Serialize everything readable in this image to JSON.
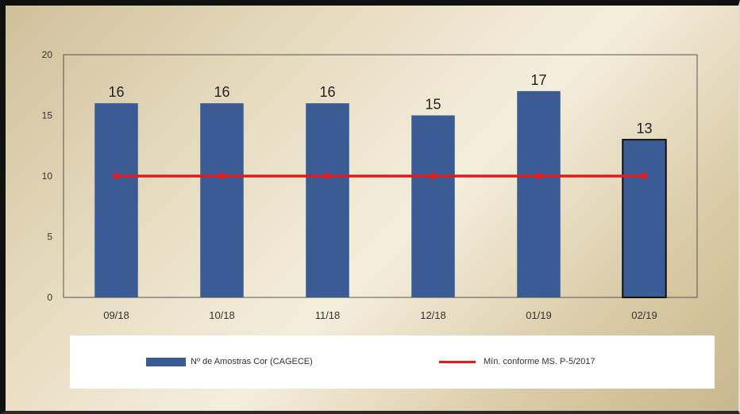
{
  "chart_data": {
    "type": "bar",
    "categories": [
      "09/18",
      "10/18",
      "11/18",
      "12/18",
      "01/19",
      "02/19"
    ],
    "series": [
      {
        "name": "Nº de Amostras Cor (CAGECE)",
        "type": "bar",
        "values": [
          16,
          16,
          16,
          15,
          17,
          13
        ],
        "color": "#3b5b94"
      },
      {
        "name": "Mín. conforme MS. P-5/2017",
        "type": "line",
        "values": [
          10,
          10,
          10,
          10,
          10,
          10
        ],
        "color": "#e01b1b"
      }
    ],
    "yticks": [
      0,
      5,
      10,
      15,
      20
    ],
    "ylim": [
      0,
      20
    ],
    "legend_position": "bottom",
    "grid": false
  }
}
